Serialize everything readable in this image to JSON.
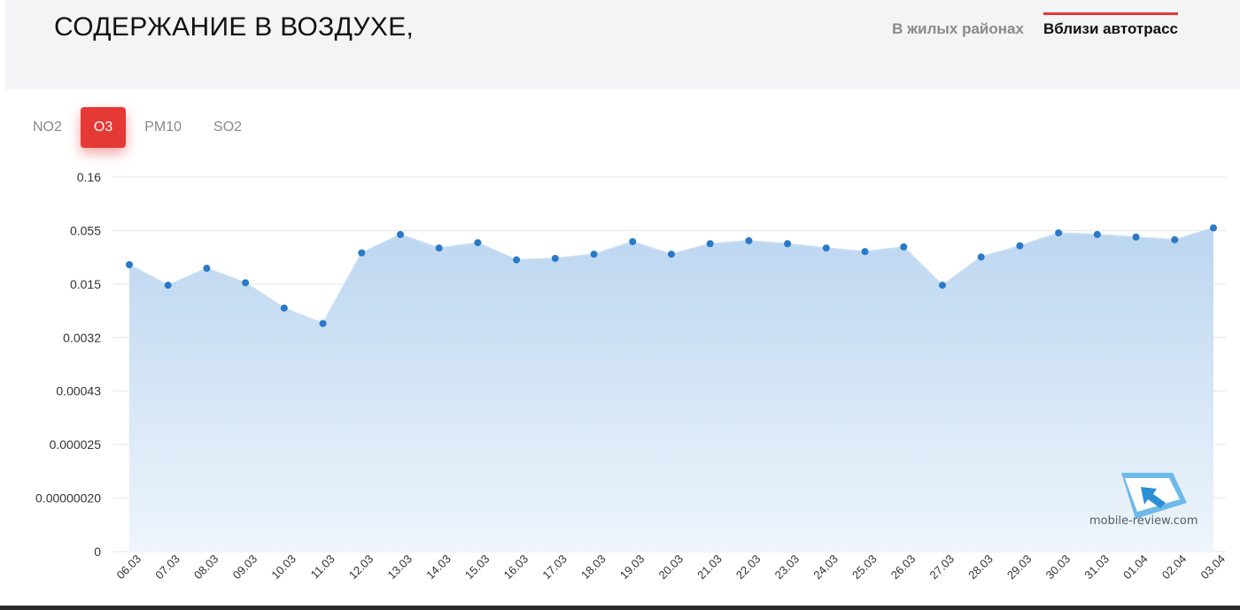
{
  "header": {
    "title": "СОДЕРЖАНИЕ В ВОЗДУХЕ,",
    "region_tabs": [
      {
        "label": "В жилых районах",
        "active": false
      },
      {
        "label": "Вблизи автотрасс",
        "active": true
      }
    ]
  },
  "pollutant_tabs": [
    {
      "label": "NO2",
      "active": false
    },
    {
      "label": "O3",
      "active": true
    },
    {
      "label": "PM10",
      "active": false
    },
    {
      "label": "SO2",
      "active": false
    }
  ],
  "watermark": {
    "text": "mobile-review.com",
    "icon": "mobile-review-logo-icon"
  },
  "colors": {
    "accent": "#e53935",
    "point": "#2979c8",
    "area_top": "#bcd6f0",
    "area_bottom": "#eef5fc",
    "grid": "#e3e6ea"
  },
  "chart_data": {
    "type": "area",
    "y_scale": "log",
    "y_ticks": [
      "0.16",
      "0.055",
      "0.015",
      "0.0032",
      "0.00043",
      "0.000025",
      "0.00000020",
      "0"
    ],
    "categories": [
      "06.03",
      "07.03",
      "08.03",
      "09.03",
      "10.03",
      "11.03",
      "12.03",
      "13.03",
      "14.03",
      "15.03",
      "16.03",
      "17.03",
      "18.03",
      "19.03",
      "20.03",
      "21.03",
      "22.03",
      "23.03",
      "24.03",
      "25.03",
      "26.03",
      "27.03",
      "28.03",
      "29.03",
      "30.03",
      "31.03",
      "01.04",
      "02.04",
      "03.04"
    ],
    "series": [
      {
        "values": [
          0.024,
          0.0145,
          0.022,
          0.0155,
          0.0075,
          0.0048,
          0.032,
          0.05,
          0.036,
          0.041,
          0.027,
          0.028,
          0.031,
          0.042,
          0.031,
          0.04,
          0.043,
          0.04,
          0.036,
          0.033,
          0.037,
          0.0145,
          0.029,
          0.038,
          0.052,
          0.05,
          0.047,
          0.044,
          0.058
        ]
      }
    ],
    "grid": true,
    "legend": "none"
  }
}
